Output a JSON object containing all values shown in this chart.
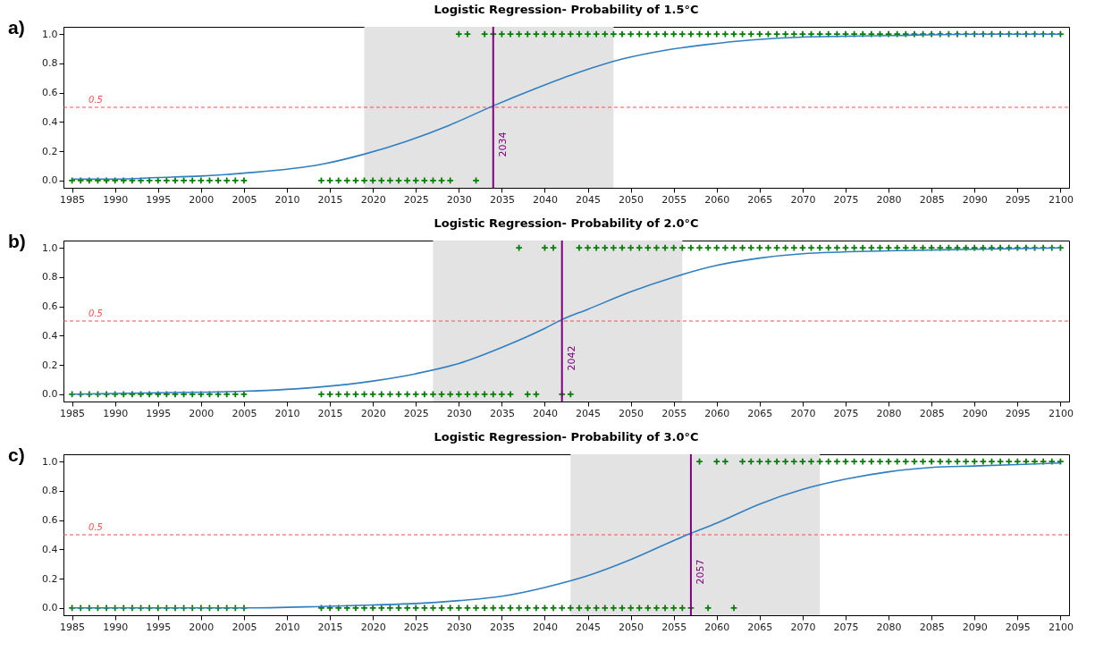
{
  "chart_data": [
    {
      "type": "line",
      "title": "Logistic Regression- Probability of 1.5°C",
      "annotations": [
        "a)"
      ],
      "xlim": [
        1984,
        2101
      ],
      "xticks": [
        1985,
        1990,
        1995,
        2000,
        2005,
        2010,
        2015,
        2020,
        2025,
        2030,
        2035,
        2040,
        2045,
        2050,
        2055,
        2060,
        2065,
        2070,
        2075,
        2080,
        2085,
        2090,
        2095,
        2100
      ],
      "ylim": [
        -0.05,
        1.05
      ],
      "yticks": [
        {
          "value": 0,
          "label": "0.0"
        },
        {
          "value": 0.2,
          "label": "0.2"
        },
        {
          "value": 0.4,
          "label": "0.4"
        },
        {
          "value": 0.6,
          "label": "0.6"
        },
        {
          "value": 0.8,
          "label": "0.8"
        },
        {
          "value": 1,
          "label": "1.0"
        }
      ],
      "grid": false,
      "bands": [
        {
          "axis": "x",
          "from": 2019,
          "to": 2048,
          "color": "#e3e3e3"
        }
      ],
      "ref_lines": [
        {
          "axis": "y",
          "value": 0.5,
          "label": "0.5",
          "color": "#ff4d4d",
          "line_style": "dashed"
        },
        {
          "axis": "x",
          "value": 2034,
          "label": "2034",
          "color": "#800080",
          "line_style": "solid"
        }
      ],
      "series": [
        {
          "type": "scatter",
          "marker": "cross",
          "color": "#008000",
          "x": [
            1985,
            1986,
            1987,
            1988,
            1989,
            1990,
            1991,
            1992,
            1993,
            1994,
            1995,
            1996,
            1997,
            1998,
            1999,
            2000,
            2001,
            2002,
            2003,
            2004,
            2005,
            2014,
            2015,
            2016,
            2017,
            2018,
            2019,
            2020,
            2021,
            2022,
            2023,
            2024,
            2025,
            2026,
            2027,
            2028,
            2029,
            2030,
            2031,
            2032,
            2033,
            2034,
            2035,
            2036,
            2037,
            2038,
            2039,
            2040,
            2041,
            2042,
            2043,
            2044,
            2045,
            2046,
            2047,
            2048,
            2049,
            2050,
            2051,
            2052,
            2053,
            2054,
            2055,
            2056,
            2057,
            2058,
            2059,
            2060,
            2061,
            2062,
            2063,
            2064,
            2065,
            2066,
            2067,
            2068,
            2069,
            2070,
            2071,
            2072,
            2073,
            2074,
            2075,
            2076,
            2077,
            2078,
            2079,
            2080,
            2081,
            2082,
            2083,
            2084,
            2085,
            2086,
            2087,
            2088,
            2089,
            2090,
            2091,
            2092,
            2093,
            2094,
            2095,
            2096,
            2097,
            2098,
            2099,
            2100
          ],
          "values": [
            0,
            0,
            0,
            0,
            0,
            0,
            0,
            0,
            0,
            0,
            0,
            0,
            0,
            0,
            0,
            0,
            0,
            0,
            0,
            0,
            0,
            0,
            0,
            0,
            0,
            0,
            0,
            0,
            0,
            0,
            0,
            0,
            0,
            0,
            0,
            0,
            0,
            1,
            1,
            0,
            1,
            1,
            1,
            1,
            1,
            1,
            1,
            1,
            1,
            1,
            1,
            1,
            1,
            1,
            1,
            1,
            1,
            1,
            1,
            1,
            1,
            1,
            1,
            1,
            1,
            1,
            1,
            1,
            1,
            1,
            1,
            1,
            1,
            1,
            1,
            1,
            1,
            1,
            1,
            1,
            1,
            1,
            1,
            1,
            1,
            1,
            1,
            1,
            1,
            1,
            1,
            1,
            1,
            1,
            1,
            1,
            1,
            1,
            1,
            1,
            1,
            1,
            1,
            1,
            1,
            1,
            1,
            1
          ]
        },
        {
          "type": "line",
          "color": "#2f7fc1",
          "x": [
            1985,
            1990,
            1995,
            2000,
            2005,
            2014,
            2019,
            2024,
            2029,
            2034,
            2039,
            2044,
            2049,
            2054,
            2059,
            2064,
            2070,
            2080,
            2090,
            2100
          ],
          "values": [
            0.01,
            0.01,
            0.02,
            0.03,
            0.05,
            0.11,
            0.18,
            0.27,
            0.38,
            0.51,
            0.63,
            0.74,
            0.83,
            0.89,
            0.93,
            0.96,
            0.98,
            0.99,
            1.0,
            1.0
          ]
        }
      ]
    },
    {
      "type": "line",
      "title": "Logistic Regression- Probability of 2.0°C",
      "annotations": [
        "b)"
      ],
      "xlim": [
        1984,
        2101
      ],
      "xticks": [
        1985,
        1990,
        1995,
        2000,
        2005,
        2010,
        2015,
        2020,
        2025,
        2030,
        2035,
        2040,
        2045,
        2050,
        2055,
        2060,
        2065,
        2070,
        2075,
        2080,
        2085,
        2090,
        2095,
        2100
      ],
      "ylim": [
        -0.05,
        1.05
      ],
      "yticks": [
        {
          "value": 0,
          "label": "0.0"
        },
        {
          "value": 0.2,
          "label": "0.2"
        },
        {
          "value": 0.4,
          "label": "0.4"
        },
        {
          "value": 0.6,
          "label": "0.6"
        },
        {
          "value": 0.8,
          "label": "0.8"
        },
        {
          "value": 1,
          "label": "1.0"
        }
      ],
      "grid": false,
      "bands": [
        {
          "axis": "x",
          "from": 2027,
          "to": 2056,
          "color": "#e3e3e3"
        }
      ],
      "ref_lines": [
        {
          "axis": "y",
          "value": 0.5,
          "label": "0.5",
          "color": "#ff4d4d",
          "line_style": "dashed"
        },
        {
          "axis": "x",
          "value": 2042,
          "label": "2042",
          "color": "#800080",
          "line_style": "solid"
        }
      ],
      "series": [
        {
          "type": "scatter",
          "marker": "cross",
          "color": "#008000",
          "x": [
            1985,
            1986,
            1987,
            1988,
            1989,
            1990,
            1991,
            1992,
            1993,
            1994,
            1995,
            1996,
            1997,
            1998,
            1999,
            2000,
            2001,
            2002,
            2003,
            2004,
            2005,
            2014,
            2015,
            2016,
            2017,
            2018,
            2019,
            2020,
            2021,
            2022,
            2023,
            2024,
            2025,
            2026,
            2027,
            2028,
            2029,
            2030,
            2031,
            2032,
            2033,
            2034,
            2035,
            2036,
            2037,
            2038,
            2039,
            2040,
            2041,
            2042,
            2043,
            2044,
            2045,
            2046,
            2047,
            2048,
            2049,
            2050,
            2051,
            2052,
            2053,
            2054,
            2055,
            2056,
            2057,
            2058,
            2059,
            2060,
            2061,
            2062,
            2063,
            2064,
            2065,
            2066,
            2067,
            2068,
            2069,
            2070,
            2071,
            2072,
            2073,
            2074,
            2075,
            2076,
            2077,
            2078,
            2079,
            2080,
            2081,
            2082,
            2083,
            2084,
            2085,
            2086,
            2087,
            2088,
            2089,
            2090,
            2091,
            2092,
            2093,
            2094,
            2095,
            2096,
            2097,
            2098,
            2099,
            2100
          ],
          "values": [
            0,
            0,
            0,
            0,
            0,
            0,
            0,
            0,
            0,
            0,
            0,
            0,
            0,
            0,
            0,
            0,
            0,
            0,
            0,
            0,
            0,
            0,
            0,
            0,
            0,
            0,
            0,
            0,
            0,
            0,
            0,
            0,
            0,
            0,
            0,
            0,
            0,
            0,
            0,
            0,
            0,
            0,
            0,
            0,
            1,
            0,
            0,
            1,
            1,
            0,
            0,
            1,
            1,
            1,
            1,
            1,
            1,
            1,
            1,
            1,
            1,
            1,
            1,
            1,
            1,
            1,
            1,
            1,
            1,
            1,
            1,
            1,
            1,
            1,
            1,
            1,
            1,
            1,
            1,
            1,
            1,
            1,
            1,
            1,
            1,
            1,
            1,
            1,
            1,
            1,
            1,
            1,
            1,
            1,
            1,
            1,
            1,
            1,
            1,
            1,
            1,
            1,
            1,
            1,
            1,
            1,
            1,
            1
          ]
        },
        {
          "type": "line",
          "color": "#2f7fc1",
          "x": [
            1985,
            1995,
            2005,
            2014,
            2020,
            2025,
            2030,
            2035,
            2040,
            2042,
            2045,
            2050,
            2055,
            2060,
            2065,
            2070,
            2080,
            2090,
            2100
          ],
          "values": [
            0.0,
            0.01,
            0.02,
            0.05,
            0.09,
            0.14,
            0.21,
            0.32,
            0.45,
            0.51,
            0.58,
            0.7,
            0.8,
            0.88,
            0.93,
            0.96,
            0.98,
            0.99,
            1.0
          ]
        }
      ]
    },
    {
      "type": "line",
      "title": "Logistic Regression- Probability of 3.0°C",
      "annotations": [
        "c)"
      ],
      "xlim": [
        1984,
        2101
      ],
      "xticks": [
        1985,
        1990,
        1995,
        2000,
        2005,
        2010,
        2015,
        2020,
        2025,
        2030,
        2035,
        2040,
        2045,
        2050,
        2055,
        2060,
        2065,
        2070,
        2075,
        2080,
        2085,
        2090,
        2095,
        2100
      ],
      "ylim": [
        -0.05,
        1.05
      ],
      "yticks": [
        {
          "value": 0,
          "label": "0.0"
        },
        {
          "value": 0.2,
          "label": "0.2"
        },
        {
          "value": 0.4,
          "label": "0.4"
        },
        {
          "value": 0.6,
          "label": "0.6"
        },
        {
          "value": 0.8,
          "label": "0.8"
        },
        {
          "value": 1,
          "label": "1.0"
        }
      ],
      "grid": false,
      "bands": [
        {
          "axis": "x",
          "from": 2043,
          "to": 2072,
          "color": "#e3e3e3"
        }
      ],
      "ref_lines": [
        {
          "axis": "y",
          "value": 0.5,
          "label": "0.5",
          "color": "#ff4d4d",
          "line_style": "dashed"
        },
        {
          "axis": "x",
          "value": 2057,
          "label": "2057",
          "color": "#800080",
          "line_style": "solid"
        }
      ],
      "series": [
        {
          "type": "scatter",
          "marker": "cross",
          "color": "#008000",
          "x": [
            1985,
            1986,
            1987,
            1988,
            1989,
            1990,
            1991,
            1992,
            1993,
            1994,
            1995,
            1996,
            1997,
            1998,
            1999,
            2000,
            2001,
            2002,
            2003,
            2004,
            2005,
            2014,
            2015,
            2016,
            2017,
            2018,
            2019,
            2020,
            2021,
            2022,
            2023,
            2024,
            2025,
            2026,
            2027,
            2028,
            2029,
            2030,
            2031,
            2032,
            2033,
            2034,
            2035,
            2036,
            2037,
            2038,
            2039,
            2040,
            2041,
            2042,
            2043,
            2044,
            2045,
            2046,
            2047,
            2048,
            2049,
            2050,
            2051,
            2052,
            2053,
            2054,
            2055,
            2056,
            2057,
            2058,
            2059,
            2060,
            2061,
            2062,
            2063,
            2064,
            2065,
            2066,
            2067,
            2068,
            2069,
            2070,
            2071,
            2072,
            2073,
            2074,
            2075,
            2076,
            2077,
            2078,
            2079,
            2080,
            2081,
            2082,
            2083,
            2084,
            2085,
            2086,
            2087,
            2088,
            2089,
            2090,
            2091,
            2092,
            2093,
            2094,
            2095,
            2096,
            2097,
            2098,
            2099,
            2100
          ],
          "values": [
            0,
            0,
            0,
            0,
            0,
            0,
            0,
            0,
            0,
            0,
            0,
            0,
            0,
            0,
            0,
            0,
            0,
            0,
            0,
            0,
            0,
            0,
            0,
            0,
            0,
            0,
            0,
            0,
            0,
            0,
            0,
            0,
            0,
            0,
            0,
            0,
            0,
            0,
            0,
            0,
            0,
            0,
            0,
            0,
            0,
            0,
            0,
            0,
            0,
            0,
            0,
            0,
            0,
            0,
            0,
            0,
            0,
            0,
            0,
            0,
            0,
            0,
            0,
            0,
            0,
            1,
            0,
            1,
            1,
            0,
            1,
            1,
            1,
            1,
            1,
            1,
            1,
            1,
            1,
            1,
            1,
            1,
            1,
            1,
            1,
            1,
            1,
            1,
            1,
            1,
            1,
            1,
            1,
            1,
            1,
            1,
            1,
            1,
            1,
            1,
            1,
            1,
            1,
            1,
            1,
            1,
            1,
            1
          ]
        },
        {
          "type": "line",
          "color": "#2f7fc1",
          "x": [
            1985,
            2005,
            2014,
            2020,
            2025,
            2030,
            2035,
            2040,
            2045,
            2050,
            2055,
            2057,
            2060,
            2065,
            2070,
            2075,
            2080,
            2085,
            2090,
            2095,
            2100
          ],
          "values": [
            0.0,
            0.0,
            0.01,
            0.02,
            0.03,
            0.05,
            0.08,
            0.14,
            0.22,
            0.33,
            0.46,
            0.51,
            0.58,
            0.71,
            0.81,
            0.88,
            0.93,
            0.96,
            0.97,
            0.98,
            0.99
          ]
        }
      ]
    }
  ]
}
